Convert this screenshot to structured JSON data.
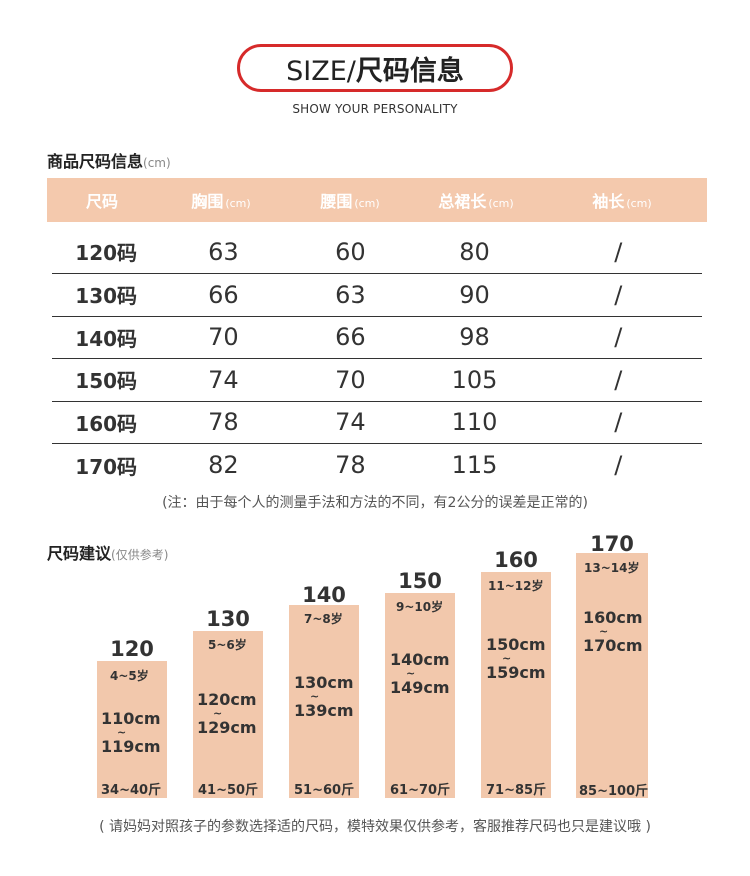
{
  "header": {
    "title_prefix": "SIZE/",
    "title_main": "尺码信息",
    "subtitle": "SHOW YOUR PERSONALITY"
  },
  "size_info": {
    "title": "商品尺码信息",
    "unit_note": "(cm)",
    "columns": [
      {
        "label": "尺码",
        "unit": ""
      },
      {
        "label": "胸围",
        "unit": "(cm)"
      },
      {
        "label": "腰围",
        "unit": "(cm)"
      },
      {
        "label": "总裙长",
        "unit": "(cm)"
      },
      {
        "label": "袖长",
        "unit": "(cm)"
      }
    ],
    "rows": [
      [
        "120码",
        "63",
        "60",
        "80",
        "/"
      ],
      [
        "130码",
        "66",
        "63",
        "90",
        "/"
      ],
      [
        "140码",
        "70",
        "66",
        "98",
        "/"
      ],
      [
        "150码",
        "74",
        "70",
        "105",
        "/"
      ],
      [
        "160码",
        "78",
        "74",
        "110",
        "/"
      ],
      [
        "170码",
        "82",
        "78",
        "115",
        "/"
      ]
    ],
    "note": "(注：由于每个人的测量手法和方法的不同，有2公分的误差是正常的)"
  },
  "size_advice": {
    "title": "尺码建议",
    "note": "(仅供参考)",
    "bars": [
      {
        "size": "120",
        "age": "4~5岁",
        "height_from": "110cm",
        "height_to": "119cm",
        "weight": "34~40斤"
      },
      {
        "size": "130",
        "age": "5~6岁",
        "height_from": "120cm",
        "height_to": "129cm",
        "weight": "41~50斤"
      },
      {
        "size": "140",
        "age": "7~8岁",
        "height_from": "130cm",
        "height_to": "139cm",
        "weight": "51~60斤"
      },
      {
        "size": "150",
        "age": "9~10岁",
        "height_from": "140cm",
        "height_to": "149cm",
        "weight": "61~70斤"
      },
      {
        "size": "160",
        "age": "11~12岁",
        "height_from": "150cm",
        "height_to": "159cm",
        "weight": "71~85斤"
      },
      {
        "size": "170",
        "age": "13~14岁",
        "height_from": "160cm",
        "height_to": "170cm",
        "weight": "85~100斤"
      }
    ],
    "tilde": "~",
    "footer": "( 请妈妈对照孩子的参数选择适的尺码，模特效果仅供参考，客服推荐尺码也只是建议哦 )"
  },
  "colors": {
    "accent_red": "#d62a2a",
    "peach": "#f4c9ad",
    "bar_peach": "#f2c8ac"
  }
}
